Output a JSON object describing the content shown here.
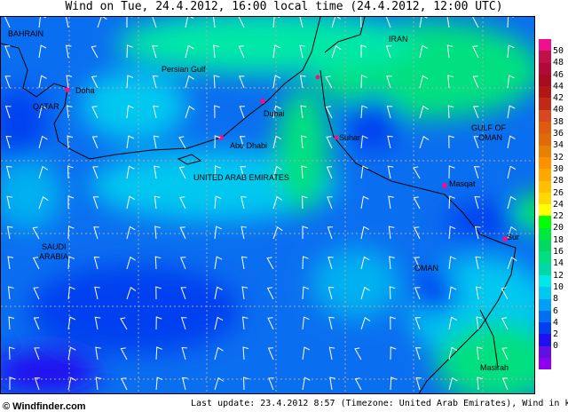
{
  "title": "Wind on Tue, 24.4.2012, 16:00 local time (24.4.2012, 12:00 UTC)",
  "legend": {
    "unit": "knots",
    "labels": [
      "50",
      "48",
      "46",
      "44",
      "42",
      "40",
      "38",
      "36",
      "34",
      "32",
      "30",
      "28",
      "26",
      "24",
      "22",
      "20",
      "18",
      "16",
      "14",
      "12",
      "10",
      "8",
      "6",
      "4",
      "2",
      "0"
    ],
    "colors": [
      "#f0108c",
      "#c0104a",
      "#b00a3a",
      "#a80a20",
      "#b01818",
      "#c02818",
      "#d84820",
      "#e05a10",
      "#e06a08",
      "#e88000",
      "#ff9000",
      "#ffa800",
      "#ffc000",
      "#ffd800",
      "#ffff00",
      "#00ff00",
      "#00e840",
      "#00d860",
      "#00e080",
      "#00d8a8",
      "#00e8e8",
      "#00c8f0",
      "#00a0f8",
      "#0070f0",
      "#0040f0",
      "#2010f0",
      "#6010e0",
      "#9000f0"
    ]
  },
  "places": {
    "bahrain": "BAHRAIN",
    "doha": "Doha",
    "qatar": "QATAR",
    "persian_gulf": "Persian Gulf",
    "dubai": "Dubai",
    "abu_dhabi": "Abu Dhabi",
    "uae": "UNITED ARAB EMIRATES",
    "iran": "IRAN",
    "suhar": "Suhar",
    "gulf_of_oman_1": "GULF OF",
    "gulf_of_oman_2": "OMAN",
    "masqat": "Masqat",
    "sur": "Sur",
    "oman": "OMAN",
    "saudi_1": "SAUDI",
    "saudi_2": "ARABIA",
    "masirah": "Masirah"
  },
  "footer": {
    "logo": "© Windfinder.com",
    "info": "Last update: 23.4.2012 8:57 (Timezone: United Arab Emirates), Wind in knots"
  }
}
